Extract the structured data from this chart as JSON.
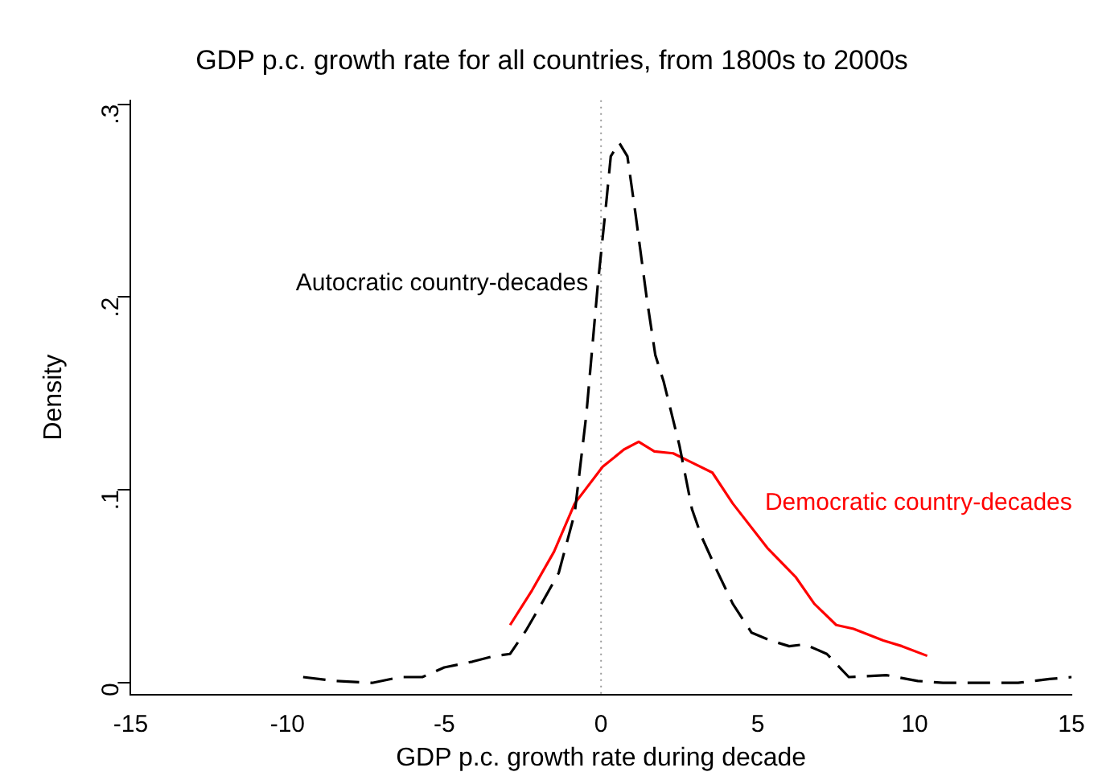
{
  "chart_data": {
    "type": "line",
    "title": "GDP p.c. growth rate for all countries, from 1800s to 2000s",
    "xlabel": "GDP p.c. growth rate during decade",
    "ylabel": "Density",
    "xlim": [
      -15,
      15
    ],
    "xticks": [
      -15,
      -10,
      -5,
      0,
      5,
      10,
      15
    ],
    "ylim": [
      -0.006,
      0.302
    ],
    "yticks": [
      {
        "value": 0,
        "label": "0"
      },
      {
        "value": 0.1,
        "label": ".1"
      },
      {
        "value": 0.2,
        "label": ".2"
      },
      {
        "value": 0.3,
        "label": ".3"
      }
    ],
    "grid": false,
    "legend": false,
    "marker": "none",
    "ref_lines": [
      {
        "axis": "x",
        "value": 0,
        "color": "#999999",
        "line_style": "dotted"
      }
    ],
    "series": [
      {
        "name": "Autocratic country-decades",
        "color": "#000000",
        "line_style": "dashed",
        "x": [
          -9.5,
          -8.5,
          -7.3,
          -6.4,
          -5.7,
          -5.0,
          -4.1,
          -3.4,
          -2.9,
          -2.4,
          -1.9,
          -1.35,
          -0.84,
          -0.47,
          -0.1,
          0.16,
          0.31,
          0.58,
          0.84,
          1.1,
          1.46,
          1.73,
          2.0,
          2.5,
          2.9,
          3.2,
          3.7,
          4.2,
          4.8,
          5.4,
          6.0,
          6.5,
          7.2,
          7.9,
          9.1,
          10.1,
          10.9,
          13.3,
          14.3,
          15
        ],
        "values": [
          0.003,
          0.001,
          0.0,
          0.003,
          0.003,
          0.008,
          0.011,
          0.014,
          0.015,
          0.027,
          0.041,
          0.057,
          0.088,
          0.139,
          0.207,
          0.248,
          0.273,
          0.28,
          0.273,
          0.243,
          0.199,
          0.17,
          0.156,
          0.123,
          0.09,
          0.076,
          0.058,
          0.041,
          0.026,
          0.022,
          0.019,
          0.02,
          0.015,
          0.003,
          0.004,
          0.001,
          0.0,
          0.0,
          0.002,
          0.003
        ]
      },
      {
        "name": "Democratic country-decades",
        "color": "#ff0000",
        "line_style": "solid",
        "x": [
          -2.9,
          -2.2,
          -1.5,
          -0.84,
          0.05,
          0.73,
          1.2,
          1.7,
          2.3,
          2.8,
          3.55,
          4.2,
          5.3,
          6.2,
          6.8,
          7.5,
          8.05,
          9.0,
          9.6,
          10.4
        ],
        "values": [
          0.03,
          0.048,
          0.068,
          0.093,
          0.112,
          0.121,
          0.125,
          0.12,
          0.119,
          0.115,
          0.109,
          0.093,
          0.07,
          0.055,
          0.041,
          0.03,
          0.028,
          0.022,
          0.019,
          0.014
        ]
      }
    ]
  }
}
